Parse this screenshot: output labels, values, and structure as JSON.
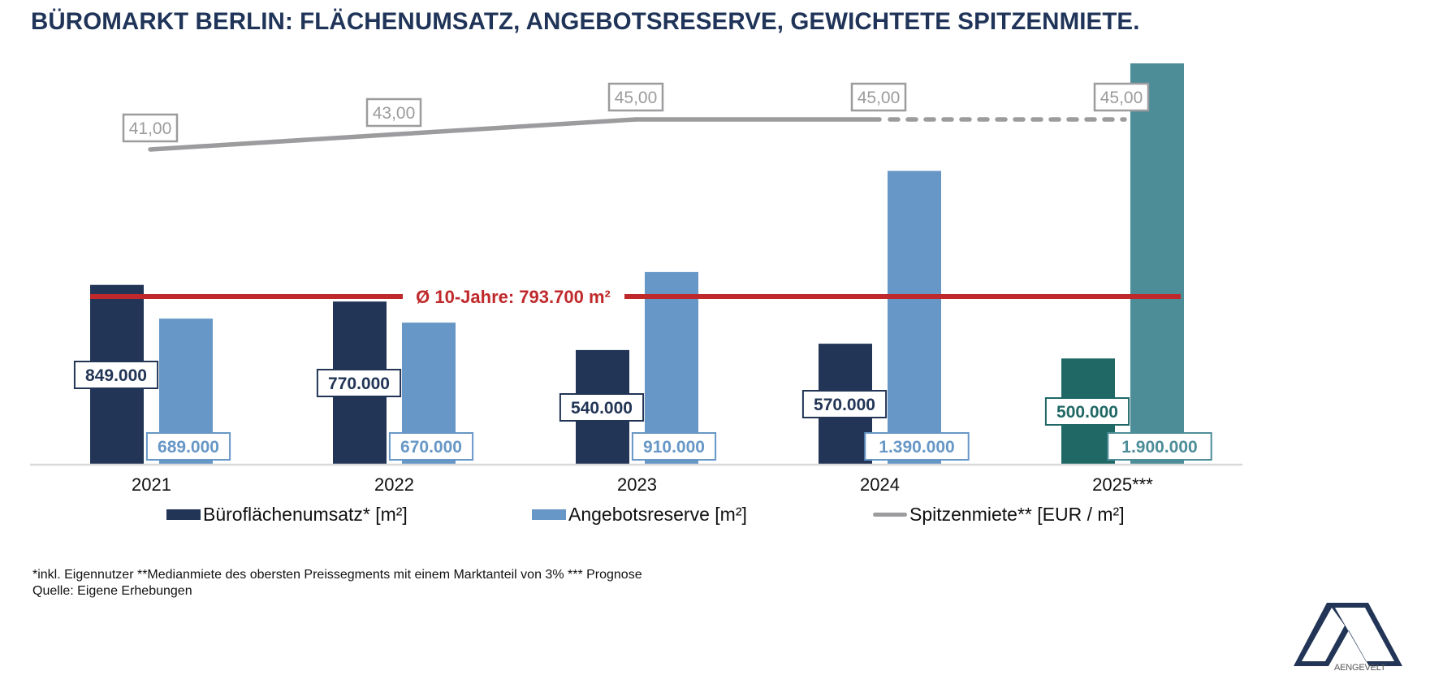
{
  "title": "BÜROMARKT BERLIN: FLÄCHENUMSATZ, ANGEBOTSRESERVE, GEWICHTETE SPITZENMIETE.",
  "colors": {
    "title": "#1f3458",
    "umsatz": "#223556",
    "angebot": "#6797c6",
    "umsatz_forecast": "#1f6866",
    "angebot_forecast": "#4d8d98",
    "miete": "#9c9c9f",
    "average": "#c0292b",
    "axis": "#d9d9d9"
  },
  "chart_data": {
    "type": "bar",
    "title": "BÜROMARKT BERLIN: FLÄCHENUMSATZ, ANGEBOTSRESERVE, GEWICHTETE SPITZENMIETE.",
    "categories": [
      "2021",
      "2022",
      "2023",
      "2024",
      "2025***"
    ],
    "series": [
      {
        "name": "Büroflächenumsatz* [m²]",
        "kind": "bar",
        "values": [
          849000,
          770000,
          540000,
          570000,
          500000
        ],
        "labels": [
          "849.000",
          "770.000",
          "540.000",
          "570.000",
          "500.000"
        ]
      },
      {
        "name": "Angebotsreserve [m²]",
        "kind": "bar",
        "values": [
          689000,
          670000,
          910000,
          1390000,
          1900000
        ],
        "labels": [
          "689.000",
          "670.000",
          "910.000",
          "1.390.000",
          "1.900.000"
        ]
      },
      {
        "name": "Spitzenmiete** [EUR / m²]",
        "kind": "line",
        "axis": "secondary",
        "values": [
          41.0,
          43.0,
          45.0,
          45.0,
          45.0
        ],
        "labels": [
          "41,00",
          "43,00",
          "45,00",
          "45,00",
          "45,00"
        ],
        "dashed_from_index": 3
      }
    ],
    "reference_line": {
      "label": "Ø 10-Jahre: 793.700 m²",
      "value": 793700
    },
    "forecast_category_index": 4,
    "ylim": [
      0,
      1900000
    ],
    "y2lim": [
      0,
      45
    ],
    "xlabel": "",
    "ylabel": "",
    "grid": false,
    "legend": "bottom"
  },
  "legend": [
    {
      "label": "Büroflächenumsatz* [m²]"
    },
    {
      "label": "Angebotsreserve [m²]"
    },
    {
      "label": "Spitzenmiete** [EUR / m²]"
    }
  ],
  "footnotes": {
    "line1": "*inkl. Eigennutzer **Medianmiete des obersten Preissegments mit einem Marktanteil von 3% *** Prognose",
    "line2": "Quelle: Eigene Erhebungen"
  },
  "logo": {
    "text": "AENGEVELT"
  }
}
